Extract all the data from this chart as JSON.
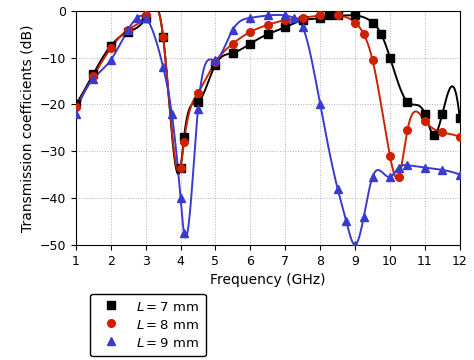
{
  "title": "",
  "xlabel": "Frequency (GHz)",
  "ylabel": "Transmission coefficients (dB)",
  "xlim": [
    1,
    12
  ],
  "ylim": [
    -50,
    0
  ],
  "xticks": [
    1,
    2,
    3,
    4,
    5,
    6,
    7,
    8,
    9,
    10,
    11,
    12
  ],
  "yticks": [
    0,
    -10,
    -20,
    -30,
    -40,
    -50
  ],
  "legend_labels": [
    "$L = 7$ mm",
    "$L = 8$ mm",
    "$L = 9$ mm"
  ],
  "colors": [
    "black",
    "#cc2200",
    "#3a3acc"
  ],
  "L7_x": [
    1.0,
    1.5,
    2.0,
    2.5,
    3.0,
    3.5,
    4.0,
    4.1,
    4.5,
    5.0,
    5.5,
    6.0,
    6.5,
    7.0,
    7.5,
    8.0,
    8.25,
    8.5,
    9.0,
    9.5,
    9.75,
    10.0,
    10.5,
    11.0,
    11.25,
    11.5,
    12.0
  ],
  "L7_y": [
    -20.0,
    -13.5,
    -7.5,
    -4.5,
    -1.5,
    -5.5,
    -33.5,
    -27.0,
    -19.5,
    -11.5,
    -9.0,
    -7.0,
    -5.0,
    -3.5,
    -2.0,
    -1.5,
    -1.0,
    -1.0,
    -1.0,
    -2.5,
    -5.0,
    -10.0,
    -19.5,
    -22.0,
    -26.5,
    -22.0,
    -23.0
  ],
  "L8_x": [
    1.0,
    1.5,
    2.0,
    2.5,
    3.0,
    3.5,
    4.0,
    4.1,
    4.5,
    5.0,
    5.5,
    6.0,
    6.5,
    7.0,
    7.5,
    8.0,
    8.5,
    9.0,
    9.25,
    9.5,
    10.0,
    10.25,
    10.5,
    11.0,
    11.5,
    12.0
  ],
  "L8_y": [
    -20.5,
    -14.0,
    -8.0,
    -4.0,
    -1.0,
    -5.5,
    -33.5,
    -28.0,
    -17.5,
    -11.0,
    -7.0,
    -4.5,
    -3.0,
    -2.0,
    -1.5,
    -1.0,
    -1.0,
    -2.5,
    -5.0,
    -10.5,
    -31.0,
    -35.5,
    -25.5,
    -23.5,
    -26.0,
    -27.0
  ],
  "L9_x": [
    1.0,
    1.5,
    2.0,
    2.5,
    2.75,
    3.0,
    3.5,
    3.75,
    4.0,
    4.1,
    4.5,
    5.0,
    5.5,
    6.0,
    6.5,
    7.0,
    7.25,
    7.5,
    8.0,
    8.5,
    8.75,
    9.0,
    9.25,
    9.5,
    10.0,
    10.25,
    10.5,
    11.0,
    11.5,
    12.0
  ],
  "L9_y": [
    -22.0,
    -14.5,
    -10.5,
    -4.0,
    -1.5,
    -1.5,
    -12.0,
    -22.0,
    -40.0,
    -47.5,
    -21.0,
    -10.5,
    -4.0,
    -1.5,
    -1.0,
    -1.0,
    -1.5,
    -3.5,
    -20.0,
    -38.0,
    -45.0,
    -50.0,
    -44.0,
    -35.5,
    -35.5,
    -33.5,
    -33.0,
    -33.5,
    -34.0,
    -35.0
  ],
  "marker_L7": "s",
  "marker_L8": "o",
  "marker_L9": "^",
  "markersize": 5.5,
  "linewidth": 1.4
}
